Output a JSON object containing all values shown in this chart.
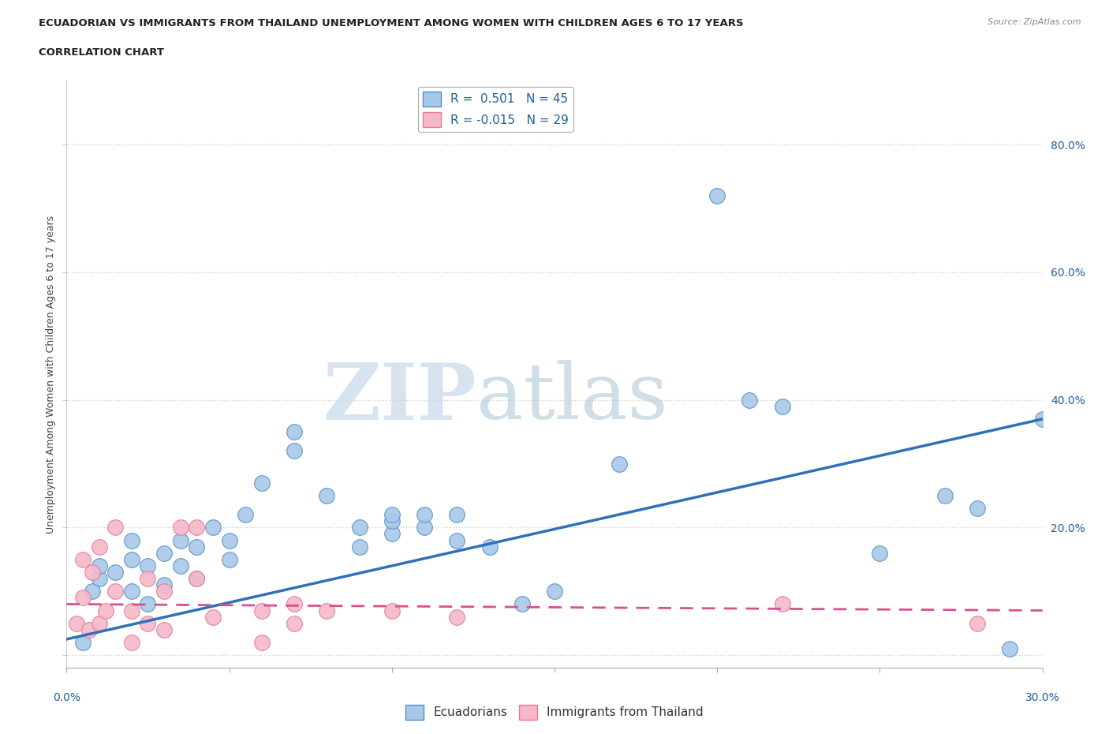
{
  "title_line1": "ECUADORIAN VS IMMIGRANTS FROM THAILAND UNEMPLOYMENT AMONG WOMEN WITH CHILDREN AGES 6 TO 17 YEARS",
  "title_line2": "CORRELATION CHART",
  "source": "Source: ZipAtlas.com",
  "ylabel": "Unemployment Among Women with Children Ages 6 to 17 years",
  "xlim": [
    0.0,
    0.3
  ],
  "ylim": [
    -0.02,
    0.9
  ],
  "ytick_vals_right": [
    0.2,
    0.4,
    0.6,
    0.8
  ],
  "ytick_labels_right": [
    "20.0%",
    "40.0%",
    "60.0%",
    "80.0%"
  ],
  "xticks": [
    0.0,
    0.05,
    0.1,
    0.15,
    0.2,
    0.25,
    0.3
  ],
  "watermark_zip": "ZIP",
  "watermark_atlas": "atlas",
  "legend_r1": "R =  0.501   N = 45",
  "legend_r2": "R = -0.015   N = 29",
  "blue_color": "#a8c8e8",
  "pink_color": "#f4b8c8",
  "blue_edge_color": "#5590c8",
  "pink_edge_color": "#e87898",
  "blue_line_color": "#3070b8",
  "pink_line_color": "#d85090",
  "grid_color": "#cccccc",
  "background_color": "#ffffff",
  "text_color": "#2060a0",
  "blue_x": [
    0.005,
    0.008,
    0.01,
    0.01,
    0.015,
    0.02,
    0.02,
    0.02,
    0.025,
    0.025,
    0.03,
    0.03,
    0.035,
    0.035,
    0.04,
    0.04,
    0.045,
    0.05,
    0.05,
    0.055,
    0.06,
    0.07,
    0.07,
    0.08,
    0.09,
    0.09,
    0.1,
    0.1,
    0.1,
    0.11,
    0.11,
    0.12,
    0.12,
    0.13,
    0.14,
    0.15,
    0.17,
    0.2,
    0.21,
    0.22,
    0.25,
    0.27,
    0.28,
    0.29,
    0.3
  ],
  "blue_y": [
    0.02,
    0.1,
    0.12,
    0.14,
    0.13,
    0.1,
    0.15,
    0.18,
    0.08,
    0.14,
    0.11,
    0.16,
    0.14,
    0.18,
    0.12,
    0.17,
    0.2,
    0.15,
    0.18,
    0.22,
    0.27,
    0.32,
    0.35,
    0.25,
    0.17,
    0.2,
    0.19,
    0.21,
    0.22,
    0.2,
    0.22,
    0.18,
    0.22,
    0.17,
    0.08,
    0.1,
    0.3,
    0.72,
    0.4,
    0.39,
    0.16,
    0.25,
    0.23,
    0.01,
    0.37
  ],
  "pink_x": [
    0.003,
    0.005,
    0.005,
    0.007,
    0.008,
    0.01,
    0.01,
    0.012,
    0.015,
    0.015,
    0.02,
    0.02,
    0.025,
    0.025,
    0.03,
    0.03,
    0.035,
    0.04,
    0.04,
    0.045,
    0.06,
    0.06,
    0.07,
    0.07,
    0.08,
    0.1,
    0.12,
    0.22,
    0.28
  ],
  "pink_y": [
    0.05,
    0.09,
    0.15,
    0.04,
    0.13,
    0.05,
    0.17,
    0.07,
    0.1,
    0.2,
    0.02,
    0.07,
    0.05,
    0.12,
    0.04,
    0.1,
    0.2,
    0.2,
    0.12,
    0.06,
    0.02,
    0.07,
    0.05,
    0.08,
    0.07,
    0.07,
    0.06,
    0.08,
    0.05
  ],
  "blue_trend_x": [
    0.0,
    0.3
  ],
  "blue_trend_y": [
    0.025,
    0.37
  ],
  "pink_trend_x": [
    0.0,
    0.3
  ],
  "pink_trend_y": [
    0.08,
    0.07
  ]
}
